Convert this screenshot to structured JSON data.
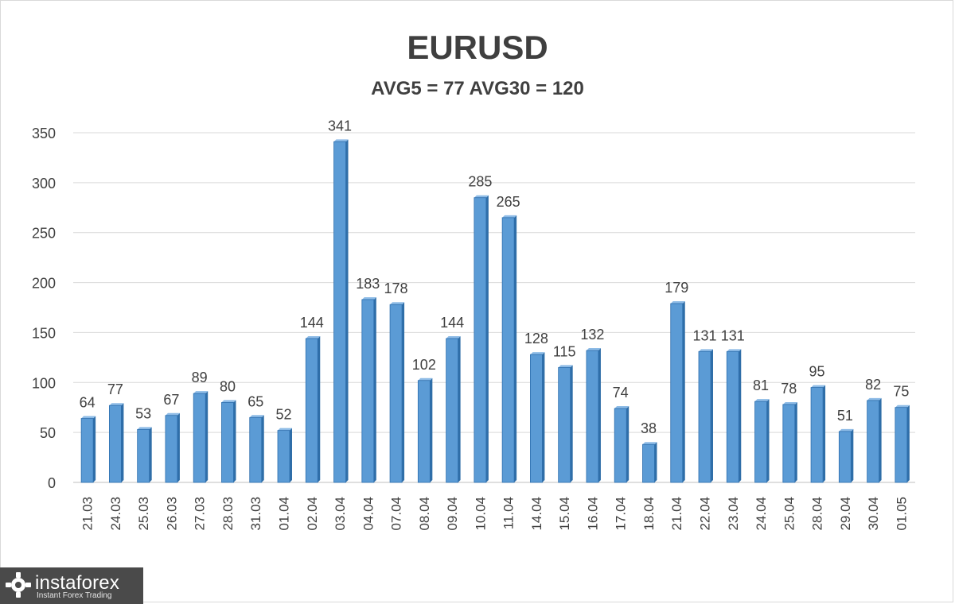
{
  "chart_data": {
    "type": "bar",
    "title": "EURUSD",
    "subtitle": "AVG5 = 77 AVG30 = 120",
    "categories": [
      "21.03",
      "24.03",
      "25.03",
      "26.03",
      "27.03",
      "28.03",
      "31.03",
      "01.04",
      "02.04",
      "03.04",
      "04.04",
      "07.04",
      "08.04",
      "09.04",
      "10.04",
      "11.04",
      "14.04",
      "15.04",
      "16.04",
      "17.04",
      "18.04",
      "21.04",
      "22.04",
      "23.04",
      "24.04",
      "25.04",
      "28.04",
      "29.04",
      "30.04",
      "01.05"
    ],
    "values": [
      64,
      77,
      53,
      67,
      89,
      80,
      65,
      52,
      144,
      341,
      183,
      178,
      102,
      144,
      285,
      265,
      128,
      115,
      132,
      74,
      38,
      179,
      131,
      131,
      81,
      78,
      95,
      51,
      82,
      75
    ],
    "yticks": [
      0,
      50,
      100,
      150,
      200,
      250,
      300,
      350
    ],
    "ylim": [
      0,
      350
    ],
    "grid": true,
    "bar_color": "#5b9bd5",
    "bar_edge_color": "#2e6fae"
  },
  "logo": {
    "name": "instaforex",
    "tagline": "Instant Forex Trading"
  }
}
